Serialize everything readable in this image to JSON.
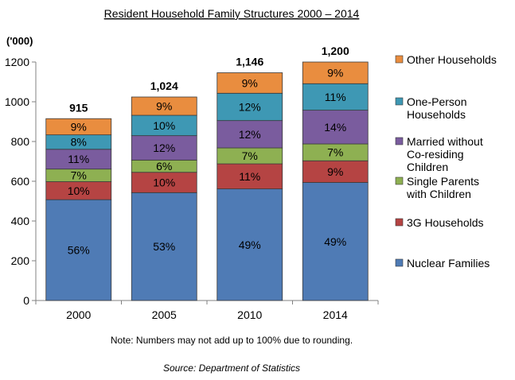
{
  "chart_data": {
    "type": "bar",
    "stacked": true,
    "title": "Resident Household Family Structures 2000 – 2014",
    "ylabel": "('000)",
    "xlabel": "",
    "ylim": [
      0,
      1200
    ],
    "yticks": [
      0,
      200,
      400,
      600,
      800,
      1000,
      1200
    ],
    "categories": [
      "2000",
      "2005",
      "2010",
      "2014"
    ],
    "totals": [
      915,
      1024,
      1146,
      1200
    ],
    "total_labels": [
      "915",
      "1,024",
      "1,146",
      "1,200"
    ],
    "series": [
      {
        "name": "Nuclear Families",
        "color": "#4F7BB5",
        "percent": [
          56,
          53,
          49,
          49
        ],
        "labels": [
          "56%",
          "53%",
          "49%",
          "49%"
        ]
      },
      {
        "name": "3G Households",
        "color": "#B54443",
        "percent": [
          10,
          10,
          11,
          9
        ],
        "labels": [
          "10%",
          "10%",
          "11%",
          "9%"
        ]
      },
      {
        "name": "Single Parents with Children",
        "legend_lines": [
          "Single Parents",
          "with Children"
        ],
        "color": "#8EB052",
        "percent": [
          7,
          6,
          7,
          7
        ],
        "labels": [
          "7%",
          "6%",
          "7%",
          "7%"
        ]
      },
      {
        "name": "Married without Co-residing Children",
        "legend_lines": [
          "Married without",
          "Co-residing",
          "Children"
        ],
        "color": "#7A5C9E",
        "percent": [
          11,
          12,
          12,
          14
        ],
        "labels": [
          "11%",
          "12%",
          "12%",
          "14%"
        ]
      },
      {
        "name": "One-Person Households",
        "legend_lines": [
          "One-Person",
          "Households"
        ],
        "color": "#3E98B4",
        "percent": [
          8,
          10,
          12,
          11
        ],
        "labels": [
          "8%",
          "10%",
          "12%",
          "11%"
        ]
      },
      {
        "name": "Other Households",
        "color": "#E98D3F",
        "percent": [
          9,
          9,
          9,
          9
        ],
        "labels": [
          "9%",
          "9%",
          "9%",
          "9%"
        ]
      }
    ],
    "legend_position": "right"
  },
  "footer": {
    "note": "Note: Numbers may not add up to 100% due to rounding.",
    "source": "Source: Department of Statistics"
  }
}
